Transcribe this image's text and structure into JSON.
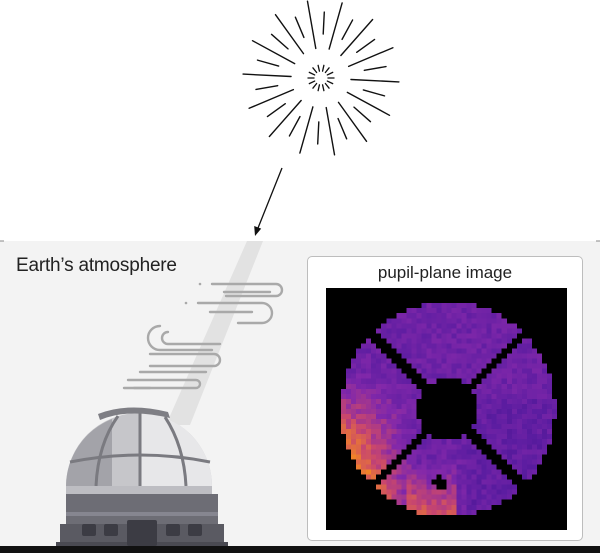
{
  "labels": {
    "atmosphere": "Earth’s atmosphere",
    "pupil_panel_title": "pupil-plane image"
  },
  "icons": {
    "star": "starburst-icon",
    "wind": "wind-icon",
    "observatory": "observatory-dome-icon"
  },
  "colors": {
    "atmosphere_band": "#f3f3f3",
    "light_beam": "#e4e4e4",
    "wind": "#a9a9a9",
    "dome_light": "#c5c5c9",
    "dome_dark": "#8d8d93",
    "building": "#5e5e66",
    "pupil_low": "#5b1b9b",
    "pupil_high": "#fdc02e"
  }
}
